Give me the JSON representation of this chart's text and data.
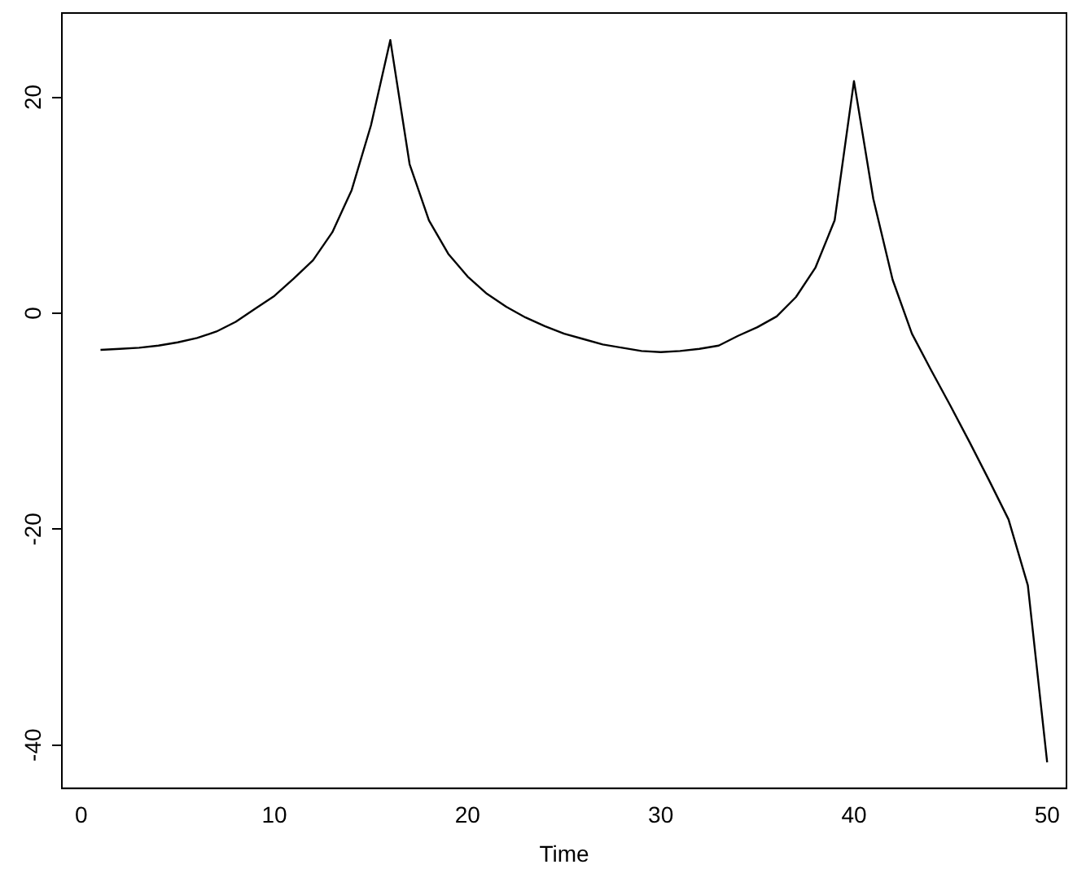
{
  "chart_data": {
    "type": "line",
    "xlabel": "Time",
    "x": [
      1,
      2,
      3,
      4,
      5,
      6,
      7,
      8,
      9,
      10,
      11,
      12,
      13,
      14,
      15,
      16,
      17,
      18,
      19,
      20,
      21,
      22,
      23,
      24,
      25,
      26,
      27,
      28,
      29,
      30,
      31,
      32,
      33,
      34,
      35,
      36,
      37,
      38,
      39,
      40,
      41,
      42,
      43,
      44,
      45,
      46,
      47,
      48,
      49,
      50
    ],
    "series": [
      {
        "color": "#000000",
        "values": [
          -3.4,
          -3.3,
          -3.2,
          -3.0,
          -2.7,
          -2.3,
          -1.7,
          -0.8,
          0.4,
          1.6,
          3.2,
          4.9,
          7.5,
          11.4,
          17.4,
          25.3,
          13.8,
          8.6,
          5.5,
          3.4,
          1.8,
          0.6,
          -0.4,
          -1.2,
          -1.9,
          -2.4,
          -2.9,
          -3.2,
          -3.5,
          -3.6,
          -3.5,
          -3.3,
          -3.0,
          -2.1,
          -1.3,
          -0.3,
          1.5,
          4.2,
          8.6,
          21.5,
          10.6,
          3.1,
          -1.9,
          -5.3,
          -8.6,
          -12,
          -15.5,
          -19.1,
          -25.2,
          -41.6
        ]
      }
    ],
    "xlim": [
      -1,
      51
    ],
    "xticks": [
      0,
      10,
      20,
      30,
      40,
      50
    ],
    "ylim": [
      -44,
      27.8
    ],
    "yticks": [
      -40,
      -20,
      0,
      20
    ],
    "grid": false,
    "legend": false,
    "marker": "none",
    "line_style": "solid"
  }
}
